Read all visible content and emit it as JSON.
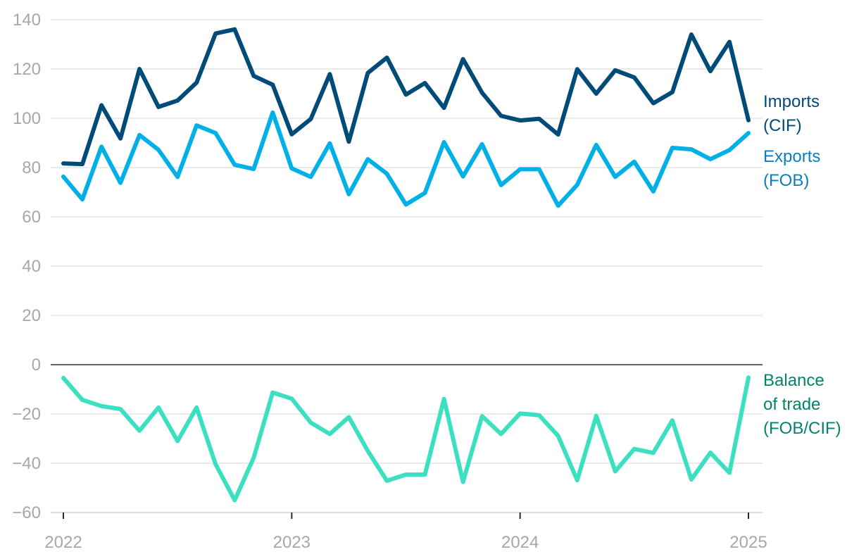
{
  "chart_data": {
    "type": "line",
    "title": "",
    "xlabel": "",
    "ylabel": "",
    "ylim": [
      -60,
      140
    ],
    "yticks": [
      140,
      120,
      100,
      80,
      60,
      40,
      20,
      0,
      -20,
      -40,
      -60
    ],
    "ytick_labels": [
      "140",
      "120",
      "100",
      "80",
      "60",
      "40",
      "20",
      "0",
      "−20",
      "−40",
      "−60"
    ],
    "xticks": [
      2022,
      2023,
      2024,
      2025
    ],
    "xtick_labels": [
      "2022",
      "2023",
      "2024",
      "2025"
    ],
    "xlim": [
      2022,
      2025
    ],
    "grid": true,
    "legend": "end-of-line labels, right",
    "x_start": 2022,
    "x_step_months": 1,
    "series": [
      {
        "name": "Imports (CIF)",
        "label_lines": [
          "Imports",
          "(CIF)"
        ],
        "color": "#004b78",
        "label_color": "#004b78",
        "values": [
          81.7,
          81.4,
          105.3,
          91.8,
          120.0,
          104.6,
          107.2,
          114.5,
          134.4,
          136.1,
          117.2,
          113.6,
          93.5,
          99.7,
          117.9,
          90.5,
          118.4,
          124.6,
          109.6,
          114.3,
          104.2,
          124.0,
          110.4,
          101.0,
          99.1,
          99.8,
          93.4,
          119.9,
          110.0,
          119.5,
          116.6,
          106.1,
          110.6,
          134.0,
          119.1,
          131.0,
          99.2
        ]
      },
      {
        "name": "Exports (FOB)",
        "label_lines": [
          "Exports",
          "(FOB)"
        ],
        "color": "#00b0e6",
        "label_color": "#0a7fbd",
        "values": [
          76.3,
          67.1,
          88.5,
          73.8,
          93.2,
          87.2,
          76.2,
          97.1,
          94.0,
          81.1,
          79.4,
          102.3,
          79.7,
          76.2,
          89.8,
          69.2,
          83.4,
          77.5,
          65.0,
          69.7,
          90.3,
          76.4,
          89.5,
          72.9,
          79.3,
          79.3,
          64.5,
          73.0,
          89.2,
          76.2,
          82.4,
          70.3,
          88.0,
          87.4,
          83.4,
          87.1,
          94.0
        ]
      },
      {
        "name": "Balance of trade (FOB/CIF)",
        "label_lines": [
          "Balance",
          "of trade",
          "(FOB/CIF)"
        ],
        "color": "#3ae0c0",
        "label_color": "#00856a",
        "values": [
          -5.4,
          -14.3,
          -16.8,
          -18.0,
          -26.8,
          -17.4,
          -31.0,
          -17.4,
          -40.4,
          -55.0,
          -37.8,
          -11.3,
          -13.8,
          -23.5,
          -28.1,
          -21.3,
          -35.0,
          -47.1,
          -44.6,
          -44.6,
          -13.9,
          -47.6,
          -20.9,
          -28.1,
          -19.8,
          -20.5,
          -28.9,
          -46.9,
          -20.8,
          -43.3,
          -34.2,
          -35.8,
          -22.6,
          -46.6,
          -35.7,
          -43.9,
          -5.2
        ]
      }
    ]
  }
}
